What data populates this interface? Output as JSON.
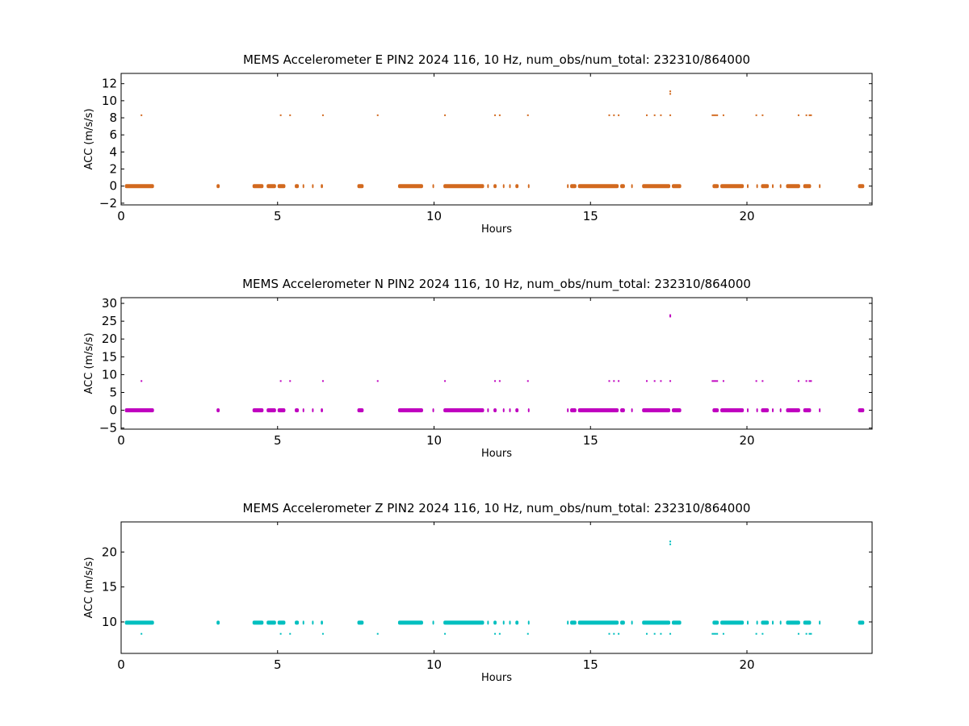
{
  "chart_data": [
    {
      "type": "scatter",
      "title": "MEMS Accelerometer E PIN2 2024 116, 10 Hz, num_obs/num_total: 232310/864000",
      "xlabel": "Hours",
      "ylabel": "ACC (m/s/s)",
      "xlim": [
        0,
        24
      ],
      "ylim": [
        -2.2,
        13.2
      ],
      "xticks": [
        0,
        5,
        10,
        15,
        20
      ],
      "yticks": [
        -2,
        0,
        2,
        4,
        6,
        8,
        10,
        12
      ],
      "color": "#d2691e",
      "grid": false,
      "baseline_value": 0.0,
      "spike_value": 8.3,
      "segments": [
        [
          0.12,
          1.05
        ],
        [
          3.05,
          3.15
        ],
        [
          4.2,
          4.55
        ],
        [
          4.65,
          4.95
        ],
        [
          5.0,
          5.25
        ],
        [
          5.55,
          5.68
        ],
        [
          5.8,
          5.85
        ],
        [
          6.1,
          6.15
        ],
        [
          6.38,
          6.45
        ],
        [
          7.55,
          7.75
        ],
        [
          8.85,
          9.65
        ],
        [
          9.95,
          10.0
        ],
        [
          10.3,
          11.6
        ],
        [
          11.7,
          11.75
        ],
        [
          11.9,
          12.0
        ],
        [
          12.2,
          12.25
        ],
        [
          12.4,
          12.45
        ],
        [
          12.6,
          12.7
        ],
        [
          13.0,
          13.05
        ],
        [
          14.25,
          14.3
        ],
        [
          14.35,
          14.55
        ],
        [
          14.6,
          15.9
        ],
        [
          15.95,
          16.1
        ],
        [
          16.3,
          16.35
        ],
        [
          16.65,
          17.55
        ],
        [
          17.6,
          17.9
        ],
        [
          18.9,
          19.1
        ],
        [
          19.15,
          19.9
        ],
        [
          20.0,
          20.05
        ],
        [
          20.3,
          20.35
        ],
        [
          20.45,
          20.7
        ],
        [
          20.8,
          20.85
        ],
        [
          21.05,
          21.1
        ],
        [
          21.25,
          21.7
        ],
        [
          21.8,
          22.05
        ],
        [
          22.3,
          22.35
        ],
        [
          23.55,
          23.75
        ]
      ],
      "spikes": [
        0.65,
        5.1,
        5.4,
        6.45,
        8.2,
        10.35,
        11.95,
        12.1,
        13.0,
        15.6,
        15.75,
        15.9,
        16.8,
        17.05,
        17.25,
        17.55,
        18.9,
        18.95,
        19.0,
        19.05,
        19.25,
        20.3,
        20.5,
        21.65,
        21.9,
        22.0,
        22.05
      ],
      "outliers": [
        [
          17.55,
          10.8
        ],
        [
          17.55,
          11.1
        ]
      ]
    },
    {
      "type": "scatter",
      "title": "MEMS Accelerometer N PIN2 2024 116, 10 Hz, num_obs/num_total: 232310/864000",
      "xlabel": "Hours",
      "ylabel": "ACC (m/s/s)",
      "xlim": [
        0,
        24
      ],
      "ylim": [
        -5.3,
        31.6
      ],
      "xticks": [
        0,
        5,
        10,
        15,
        20
      ],
      "yticks": [
        -5,
        0,
        5,
        10,
        15,
        20,
        25,
        30
      ],
      "color": "#bf00bf",
      "grid": false,
      "baseline_value": 0.0,
      "spike_value": 8.2,
      "segments": [
        [
          0.12,
          1.05
        ],
        [
          3.05,
          3.15
        ],
        [
          4.2,
          4.55
        ],
        [
          4.65,
          4.95
        ],
        [
          5.0,
          5.25
        ],
        [
          5.55,
          5.68
        ],
        [
          5.8,
          5.85
        ],
        [
          6.1,
          6.15
        ],
        [
          6.38,
          6.45
        ],
        [
          7.55,
          7.75
        ],
        [
          8.85,
          9.65
        ],
        [
          9.95,
          10.0
        ],
        [
          10.3,
          11.6
        ],
        [
          11.7,
          11.75
        ],
        [
          11.9,
          12.0
        ],
        [
          12.2,
          12.25
        ],
        [
          12.4,
          12.45
        ],
        [
          12.6,
          12.7
        ],
        [
          13.0,
          13.05
        ],
        [
          14.25,
          14.3
        ],
        [
          14.35,
          14.55
        ],
        [
          14.6,
          15.9
        ],
        [
          15.95,
          16.1
        ],
        [
          16.3,
          16.35
        ],
        [
          16.65,
          17.55
        ],
        [
          17.6,
          17.9
        ],
        [
          18.9,
          19.1
        ],
        [
          19.15,
          19.9
        ],
        [
          20.0,
          20.05
        ],
        [
          20.3,
          20.35
        ],
        [
          20.45,
          20.7
        ],
        [
          20.8,
          20.85
        ],
        [
          21.05,
          21.1
        ],
        [
          21.25,
          21.7
        ],
        [
          21.8,
          22.05
        ],
        [
          22.3,
          22.35
        ],
        [
          23.55,
          23.75
        ]
      ],
      "spikes": [
        0.65,
        5.1,
        5.4,
        6.45,
        8.2,
        10.35,
        11.95,
        12.1,
        13.0,
        15.6,
        15.75,
        15.9,
        16.8,
        17.05,
        17.25,
        17.55,
        18.9,
        18.95,
        19.0,
        19.05,
        19.25,
        20.3,
        20.5,
        21.65,
        21.9,
        22.0,
        22.05
      ],
      "outliers": [
        [
          17.55,
          26.3
        ],
        [
          17.55,
          26.7
        ]
      ]
    },
    {
      "type": "scatter",
      "title": "MEMS Accelerometer Z PIN2 2024 116, 10 Hz, num_obs/num_total: 232310/864000",
      "xlabel": "Hours",
      "ylabel": "ACC (m/s/s)",
      "xlim": [
        0,
        24
      ],
      "ylim": [
        5.5,
        24.3
      ],
      "xticks": [
        0,
        5,
        10,
        15,
        20
      ],
      "yticks": [
        10,
        15,
        20
      ],
      "color": "#00bfbf",
      "grid": false,
      "baseline_value": 9.9,
      "spike_value": 8.3,
      "segments": [
        [
          0.12,
          1.05
        ],
        [
          3.05,
          3.15
        ],
        [
          4.2,
          4.55
        ],
        [
          4.65,
          4.95
        ],
        [
          5.0,
          5.25
        ],
        [
          5.55,
          5.68
        ],
        [
          5.8,
          5.85
        ],
        [
          6.1,
          6.15
        ],
        [
          6.38,
          6.45
        ],
        [
          7.55,
          7.75
        ],
        [
          8.85,
          9.65
        ],
        [
          9.95,
          10.0
        ],
        [
          10.3,
          11.6
        ],
        [
          11.7,
          11.75
        ],
        [
          11.9,
          12.0
        ],
        [
          12.2,
          12.25
        ],
        [
          12.4,
          12.45
        ],
        [
          12.6,
          12.7
        ],
        [
          13.0,
          13.05
        ],
        [
          14.25,
          14.3
        ],
        [
          14.35,
          14.55
        ],
        [
          14.6,
          15.9
        ],
        [
          15.95,
          16.1
        ],
        [
          16.3,
          16.35
        ],
        [
          16.65,
          17.55
        ],
        [
          17.6,
          17.9
        ],
        [
          18.9,
          19.1
        ],
        [
          19.15,
          19.9
        ],
        [
          20.0,
          20.05
        ],
        [
          20.3,
          20.35
        ],
        [
          20.45,
          20.7
        ],
        [
          20.8,
          20.85
        ],
        [
          21.05,
          21.1
        ],
        [
          21.25,
          21.7
        ],
        [
          21.8,
          22.05
        ],
        [
          22.3,
          22.35
        ],
        [
          23.55,
          23.75
        ]
      ],
      "spikes": [
        0.65,
        5.1,
        5.4,
        6.45,
        8.2,
        10.35,
        11.95,
        12.1,
        13.0,
        15.6,
        15.75,
        15.9,
        16.8,
        17.05,
        17.25,
        17.55,
        18.9,
        18.95,
        19.0,
        19.05,
        19.25,
        20.3,
        20.5,
        21.65,
        21.9,
        22.0,
        22.05
      ],
      "outliers": [
        [
          17.55,
          21.1
        ],
        [
          17.55,
          21.5
        ]
      ]
    }
  ]
}
